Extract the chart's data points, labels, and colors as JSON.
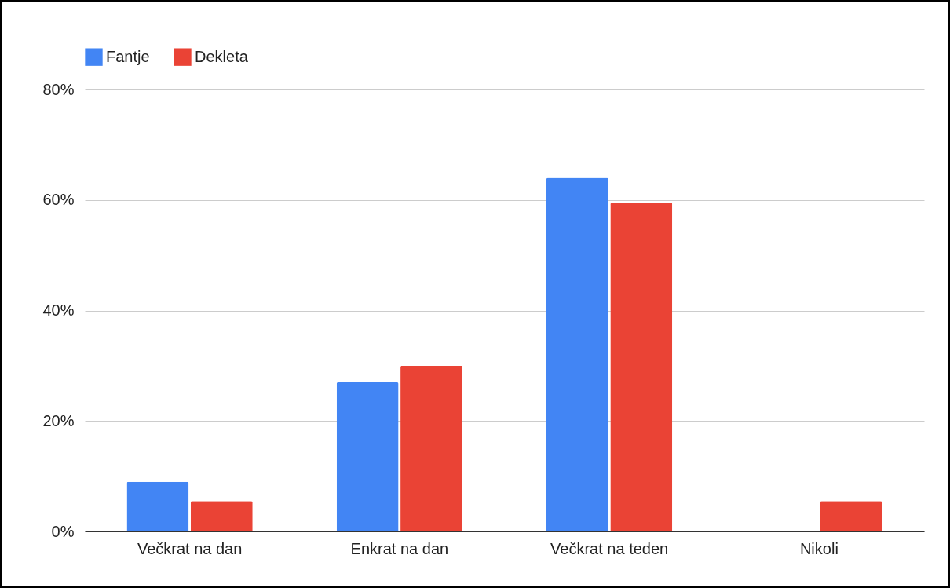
{
  "chart_data": {
    "type": "bar",
    "categories": [
      "Večkrat na dan",
      "Enkrat na dan",
      "Večkrat na teden",
      "Nikoli"
    ],
    "series": [
      {
        "name": "Fantje",
        "color": "#4285f4",
        "values": [
          9,
          27,
          64,
          0
        ]
      },
      {
        "name": "Dekleta",
        "color": "#ea4335",
        "values": [
          5.5,
          30,
          59.5,
          5.5
        ]
      }
    ],
    "ylim": [
      0,
      80
    ],
    "yticks": [
      {
        "value": 0,
        "label": "0%"
      },
      {
        "value": 20,
        "label": "20%"
      },
      {
        "value": 40,
        "label": "40%"
      },
      {
        "value": 60,
        "label": "60%"
      },
      {
        "value": 80,
        "label": "80%"
      }
    ],
    "grid": "y",
    "legend": "top"
  }
}
